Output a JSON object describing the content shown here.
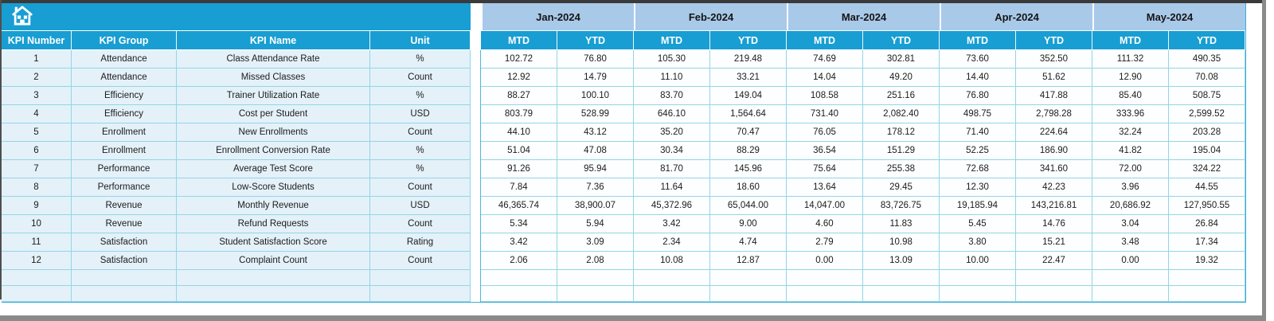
{
  "icons": {
    "home": "house-outline"
  },
  "colors": {
    "header_cyan": "#189ed2",
    "month_band": "#a9c9e9",
    "left_pane_fill": "#e4f1f9",
    "data_cell_fill": "#fdfeff",
    "grid_line": "#93d5e6",
    "window_border_gray": "#8a8a8a"
  },
  "table": {
    "left_headers": [
      "KPI Number",
      "KPI Group",
      "KPI Name",
      "Unit"
    ],
    "months": [
      "Jan-2024",
      "Feb-2024",
      "Mar-2024",
      "Apr-2024",
      "May-2024"
    ],
    "sub_headers": [
      "MTD",
      "YTD"
    ],
    "empty_row_count": 2,
    "rows": [
      {
        "num": "1",
        "group": "Attendance",
        "name": "Class Attendance Rate",
        "unit": "%",
        "values": [
          "102.72",
          "76.80",
          "105.30",
          "219.48",
          "74.69",
          "302.81",
          "73.60",
          "352.50",
          "111.32",
          "490.35"
        ]
      },
      {
        "num": "2",
        "group": "Attendance",
        "name": "Missed Classes",
        "unit": "Count",
        "values": [
          "12.92",
          "14.79",
          "11.10",
          "33.21",
          "14.04",
          "49.20",
          "14.40",
          "51.62",
          "12.90",
          "70.08"
        ]
      },
      {
        "num": "3",
        "group": "Efficiency",
        "name": "Trainer Utilization Rate",
        "unit": "%",
        "values": [
          "88.27",
          "100.10",
          "83.70",
          "149.04",
          "108.58",
          "251.16",
          "76.80",
          "417.88",
          "85.40",
          "508.75"
        ]
      },
      {
        "num": "4",
        "group": "Efficiency",
        "name": "Cost per Student",
        "unit": "USD",
        "values": [
          "803.79",
          "528.99",
          "646.10",
          "1,564.64",
          "731.40",
          "2,082.40",
          "498.75",
          "2,798.28",
          "333.96",
          "2,599.52"
        ]
      },
      {
        "num": "5",
        "group": "Enrollment",
        "name": "New Enrollments",
        "unit": "Count",
        "values": [
          "44.10",
          "43.12",
          "35.20",
          "70.47",
          "76.05",
          "178.12",
          "71.40",
          "224.64",
          "32.24",
          "203.28"
        ]
      },
      {
        "num": "6",
        "group": "Enrollment",
        "name": "Enrollment Conversion Rate",
        "unit": "%",
        "values": [
          "51.04",
          "47.08",
          "30.34",
          "88.29",
          "36.54",
          "151.29",
          "52.25",
          "186.90",
          "41.82",
          "195.04"
        ]
      },
      {
        "num": "7",
        "group": "Performance",
        "name": "Average Test Score",
        "unit": "%",
        "values": [
          "91.26",
          "95.94",
          "81.70",
          "145.96",
          "75.64",
          "255.38",
          "72.68",
          "341.60",
          "72.00",
          "324.22"
        ]
      },
      {
        "num": "8",
        "group": "Performance",
        "name": "Low-Score Students",
        "unit": "Count",
        "values": [
          "7.84",
          "7.36",
          "11.64",
          "18.60",
          "13.64",
          "29.45",
          "12.30",
          "42.23",
          "3.96",
          "44.55"
        ]
      },
      {
        "num": "9",
        "group": "Revenue",
        "name": "Monthly Revenue",
        "unit": "USD",
        "values": [
          "46,365.74",
          "38,900.07",
          "45,372.96",
          "65,044.00",
          "14,047.00",
          "83,726.75",
          "19,185.94",
          "143,216.81",
          "20,686.92",
          "127,950.55"
        ]
      },
      {
        "num": "10",
        "group": "Revenue",
        "name": "Refund Requests",
        "unit": "Count",
        "values": [
          "5.34",
          "5.94",
          "3.42",
          "9.00",
          "4.60",
          "11.83",
          "5.45",
          "14.76",
          "3.04",
          "26.84"
        ]
      },
      {
        "num": "11",
        "group": "Satisfaction",
        "name": "Student Satisfaction Score",
        "unit": "Rating",
        "values": [
          "3.42",
          "3.09",
          "2.34",
          "4.74",
          "2.79",
          "10.98",
          "3.80",
          "15.21",
          "3.48",
          "17.34"
        ]
      },
      {
        "num": "12",
        "group": "Satisfaction",
        "name": "Complaint Count",
        "unit": "Count",
        "values": [
          "2.06",
          "2.08",
          "10.08",
          "12.87",
          "0.00",
          "13.09",
          "10.00",
          "22.47",
          "0.00",
          "19.32"
        ]
      }
    ]
  }
}
